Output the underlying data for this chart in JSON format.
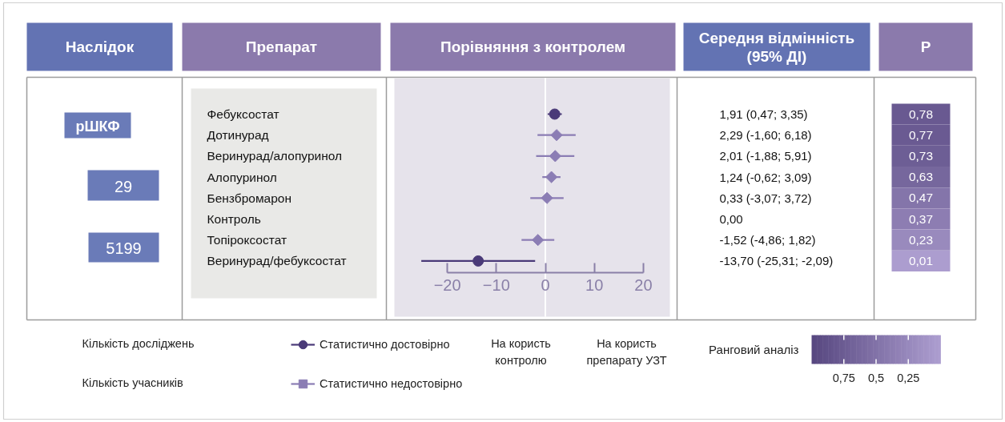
{
  "chart_data": [
    {
      "type": "scatter",
      "title": "Порівняння з контролем",
      "ylabel": "Препарат",
      "categories": [
        "Фебуксостат",
        "Дотинурад",
        "Веринурад/алопуринол",
        "Алопуринол",
        "Бензбромарон",
        "Контроль",
        "Топіроксостат",
        "Веринурад/фебуксостат"
      ],
      "orientation": "horizontal",
      "series": [
        {
          "name": "Статистично достовірно",
          "color": "#4a3a78",
          "marker": "circle",
          "values": [
            1.91,
            null,
            null,
            null,
            null,
            null,
            null,
            -13.7
          ],
          "errors": [
            [
              0.47,
              3.35
            ],
            null,
            null,
            null,
            null,
            null,
            null,
            [
              -25.31,
              -2.09
            ]
          ]
        },
        {
          "name": "Статистично недостовірно",
          "color": "#8b7db4",
          "marker": "diamond",
          "values": [
            null,
            2.29,
            2.01,
            1.24,
            0.33,
            null,
            -1.52,
            null
          ],
          "errors": [
            null,
            [
              -1.6,
              6.18
            ],
            [
              -1.88,
              5.91
            ],
            [
              -0.62,
              3.09
            ],
            [
              -3.07,
              3.72
            ],
            null,
            [
              -4.86,
              1.82
            ],
            null
          ]
        }
      ],
      "xlim": [
        -30.8,
        25.4
      ],
      "xticks": [
        {
          "value": -20,
          "label": "−20"
        },
        {
          "value": -10,
          "label": "−10"
        },
        0,
        10,
        20
      ],
      "ref_lines": [
        {
          "axis": "x",
          "value": 0,
          "color": "#ffffff"
        }
      ],
      "legend": "bottom",
      "annotations": [
        "Наслідок",
        "рШКФ",
        "29",
        "5199",
        "Кількість досліджень",
        "Кількість учасників",
        "На користь контролю",
        "На користь препарату УЗТ"
      ]
    },
    {
      "type": "other",
      "title": "Середня відмінність (95% ДІ)",
      "annotations": [
        "1,91 (0,47; 3,35)",
        "2,29 (-1,60; 6,18)",
        "2,01 (-1,88; 5,91)",
        "1,24 (-0,62; 3,09)",
        "0,33 (-3,07; 3,72)",
        "0,00",
        "-1,52 (-4,86; 1,82)",
        "-13,70 (-25,31; -2,09)"
      ]
    },
    {
      "type": "heatmap",
      "title": "P",
      "categories": [
        null
      ],
      "y_categories": [
        null,
        null,
        null,
        null,
        null,
        null,
        null,
        null
      ],
      "cells": [
        [
          0.78
        ],
        [
          0.77
        ],
        [
          0.73
        ],
        [
          0.63
        ],
        [
          0.47
        ],
        [
          0.37
        ],
        [
          0.23
        ],
        [
          0.01
        ]
      ],
      "cell_labels": [
        [
          "0,78"
        ],
        [
          "0,77"
        ],
        [
          "0,73"
        ],
        [
          "0,63"
        ],
        [
          "0,47"
        ],
        [
          "0,37"
        ],
        [
          "0,23"
        ],
        [
          "0,01"
        ]
      ],
      "clim": [
        1,
        0
      ],
      "cticks": [
        {
          "value": 0.75,
          "label": "0,75"
        },
        {
          "value": 0.5,
          "label": "0,5"
        },
        {
          "value": 0.25,
          "label": "0,25"
        }
      ],
      "clabel": "Ранговий аналіз"
    }
  ]
}
